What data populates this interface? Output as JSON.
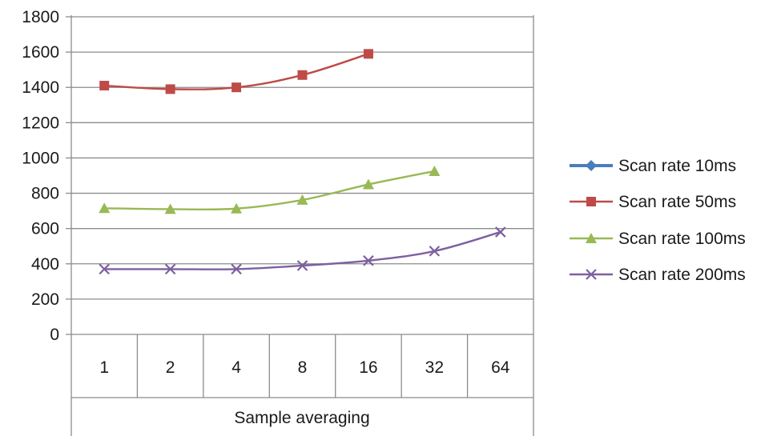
{
  "chart_data": {
    "type": "line",
    "title": "",
    "xlabel": "Sample averaging",
    "ylabel": "",
    "categories": [
      "1",
      "2",
      "4",
      "8",
      "16",
      "32",
      "64"
    ],
    "ylim": [
      0,
      1800
    ],
    "yticks": [
      "0",
      "200",
      "400",
      "600",
      "800",
      "1000",
      "1200",
      "1400",
      "1600",
      "1800"
    ],
    "grid": true,
    "legend": "right",
    "series": [
      {
        "name": "Scan rate 10ms",
        "color": "#4a7ebb",
        "marker": "diamond",
        "values": [
          null,
          null,
          null,
          null,
          null,
          null,
          null
        ]
      },
      {
        "name": "Scan rate 50ms",
        "color": "#be4b48",
        "marker": "square",
        "values": [
          1410,
          1390,
          1400,
          1470,
          1590,
          null,
          null
        ]
      },
      {
        "name": "Scan rate 100ms",
        "color": "#98b954",
        "marker": "triangle",
        "values": [
          715,
          710,
          713,
          762,
          850,
          925,
          null
        ]
      },
      {
        "name": "Scan rate 200ms",
        "color": "#7d60a0",
        "marker": "x",
        "values": [
          370,
          370,
          370,
          390,
          418,
          472,
          580
        ]
      }
    ]
  }
}
